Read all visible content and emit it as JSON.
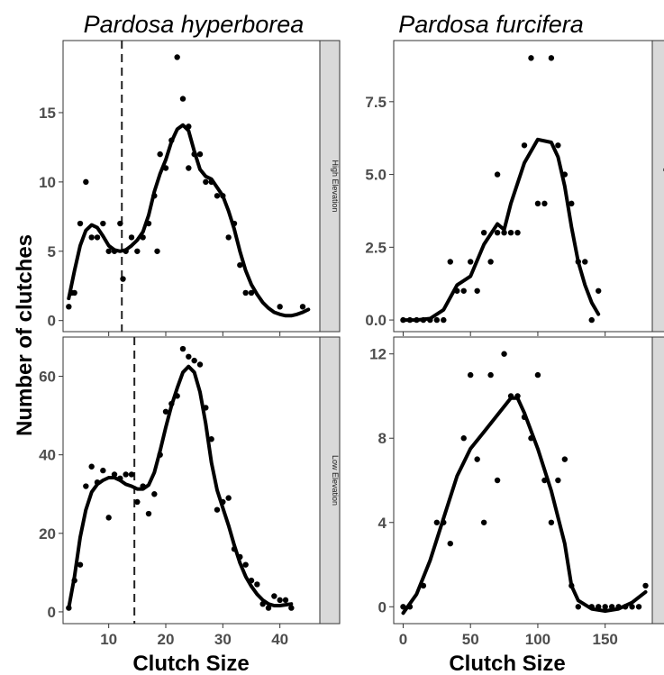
{
  "chart_data": {
    "type": "scatter",
    "xlabel": "Clutch Size",
    "ylabel": "Number of clutches",
    "columns": [
      {
        "title": "Pardosa hyperborea",
        "xlim": [
          2,
          47
        ],
        "xticks": [
          10,
          20,
          30,
          40
        ],
        "xtick_labels": [
          "10",
          "20",
          "30",
          "40"
        ]
      },
      {
        "title": "Pardosa furcifera",
        "xlim": [
          -7,
          185
        ],
        "xticks": [
          0,
          50,
          100,
          150
        ],
        "xtick_labels": [
          "0",
          "50",
          "100",
          "150"
        ]
      }
    ],
    "rows": [
      {
        "strip": "High Elevation"
      },
      {
        "strip": "Low Elevation"
      }
    ],
    "panels": [
      {
        "col": 0,
        "row": 0,
        "ylim": [
          -0.8,
          20.2
        ],
        "yticks": [
          0,
          5,
          10,
          15
        ],
        "ytick_labels": [
          "0",
          "5",
          "10",
          "15"
        ],
        "vline": 12.3,
        "points": [
          [
            3,
            1
          ],
          [
            3.5,
            2
          ],
          [
            4,
            2
          ],
          [
            5,
            7
          ],
          [
            6,
            10
          ],
          [
            7,
            6
          ],
          [
            8,
            6
          ],
          [
            9,
            7
          ],
          [
            10,
            5
          ],
          [
            11,
            5
          ],
          [
            12,
            7
          ],
          [
            12.5,
            3
          ],
          [
            13,
            5
          ],
          [
            14,
            6
          ],
          [
            15,
            5
          ],
          [
            16,
            6
          ],
          [
            17,
            7
          ],
          [
            18,
            9
          ],
          [
            18.5,
            5
          ],
          [
            19,
            12
          ],
          [
            20,
            11
          ],
          [
            21,
            13
          ],
          [
            22,
            19
          ],
          [
            23,
            16
          ],
          [
            24,
            14
          ],
          [
            24,
            11
          ],
          [
            25,
            12
          ],
          [
            26,
            12
          ],
          [
            27,
            10
          ],
          [
            28,
            10
          ],
          [
            29,
            9
          ],
          [
            30,
            9
          ],
          [
            31,
            6
          ],
          [
            32,
            7
          ],
          [
            33,
            4
          ],
          [
            34,
            2
          ],
          [
            35,
            2
          ],
          [
            40,
            1
          ],
          [
            44,
            1
          ]
        ],
        "smooth": [
          [
            3,
            1.6
          ],
          [
            4,
            3.6
          ],
          [
            5,
            5.4
          ],
          [
            6,
            6.5
          ],
          [
            7,
            6.9
          ],
          [
            8,
            6.7
          ],
          [
            9,
            6.1
          ],
          [
            10,
            5.4
          ],
          [
            11,
            5.1
          ],
          [
            12,
            5.0
          ],
          [
            13,
            5.1
          ],
          [
            14,
            5.4
          ],
          [
            15,
            5.8
          ],
          [
            16,
            6.4
          ],
          [
            17,
            7.6
          ],
          [
            18,
            9.3
          ],
          [
            19,
            10.6
          ],
          [
            20,
            11.6
          ],
          [
            21,
            12.9
          ],
          [
            22,
            13.8
          ],
          [
            23,
            14.1
          ],
          [
            24,
            13.7
          ],
          [
            25,
            12.2
          ],
          [
            26,
            10.9
          ],
          [
            27,
            10.4
          ],
          [
            28,
            10.2
          ],
          [
            29,
            9.6
          ],
          [
            30,
            9.0
          ],
          [
            31,
            7.9
          ],
          [
            32,
            6.6
          ],
          [
            33,
            5.0
          ],
          [
            34,
            3.6
          ],
          [
            35,
            2.6
          ],
          [
            36,
            1.9
          ],
          [
            37,
            1.3
          ],
          [
            38,
            0.9
          ],
          [
            39,
            0.6
          ],
          [
            40,
            0.45
          ],
          [
            41,
            0.35
          ],
          [
            42,
            0.35
          ],
          [
            43,
            0.45
          ],
          [
            44,
            0.6
          ],
          [
            45,
            0.8
          ]
        ]
      },
      {
        "col": 0,
        "row": 1,
        "ylim": [
          -3,
          70
        ],
        "yticks": [
          0,
          20,
          40,
          60
        ],
        "ytick_labels": [
          "0",
          "20",
          "40",
          "60"
        ],
        "vline": 14.5,
        "points": [
          [
            3,
            1
          ],
          [
            4,
            8
          ],
          [
            5,
            12
          ],
          [
            6,
            32
          ],
          [
            7,
            37
          ],
          [
            8,
            33
          ],
          [
            9,
            36
          ],
          [
            10,
            24
          ],
          [
            11,
            35
          ],
          [
            12,
            34
          ],
          [
            13,
            35
          ],
          [
            14,
            35
          ],
          [
            15,
            28
          ],
          [
            16,
            32
          ],
          [
            17,
            25
          ],
          [
            18,
            30
          ],
          [
            19,
            40
          ],
          [
            20,
            51
          ],
          [
            21,
            53
          ],
          [
            22,
            55
          ],
          [
            23,
            67
          ],
          [
            24,
            65
          ],
          [
            25,
            64
          ],
          [
            26,
            63
          ],
          [
            27,
            52
          ],
          [
            28,
            44
          ],
          [
            29,
            26
          ],
          [
            30,
            28
          ],
          [
            31,
            29
          ],
          [
            32,
            16
          ],
          [
            33,
            14
          ],
          [
            34,
            12
          ],
          [
            35,
            8
          ],
          [
            36,
            7
          ],
          [
            37,
            2
          ],
          [
            38,
            1
          ],
          [
            39,
            4
          ],
          [
            40,
            3
          ],
          [
            41,
            3
          ],
          [
            42,
            1
          ]
        ],
        "smooth": [
          [
            3,
            1
          ],
          [
            4,
            9
          ],
          [
            5,
            19
          ],
          [
            6,
            26
          ],
          [
            7,
            30.5
          ],
          [
            8,
            32.5
          ],
          [
            9,
            33.5
          ],
          [
            10,
            34.2
          ],
          [
            11,
            34.2
          ],
          [
            12,
            33.5
          ],
          [
            13,
            32.5
          ],
          [
            14,
            32
          ],
          [
            15,
            31.3
          ],
          [
            16,
            31.3
          ],
          [
            17,
            32.3
          ],
          [
            18,
            35.5
          ],
          [
            19,
            41
          ],
          [
            20,
            47
          ],
          [
            21,
            52.5
          ],
          [
            22,
            57
          ],
          [
            23,
            61
          ],
          [
            24,
            62.5
          ],
          [
            25,
            61
          ],
          [
            26,
            56
          ],
          [
            27,
            48
          ],
          [
            28,
            38
          ],
          [
            29,
            31
          ],
          [
            30,
            26.5
          ],
          [
            31,
            22
          ],
          [
            32,
            17
          ],
          [
            33,
            12.5
          ],
          [
            34,
            9
          ],
          [
            35,
            6.5
          ],
          [
            36,
            4.5
          ],
          [
            37,
            3
          ],
          [
            38,
            2
          ],
          [
            39,
            1.6
          ],
          [
            40,
            1.6
          ],
          [
            41,
            1.8
          ],
          [
            42,
            2
          ]
        ]
      },
      {
        "col": 1,
        "row": 0,
        "ylim": [
          -0.4,
          9.6
        ],
        "yticks": [
          0,
          2.5,
          5,
          7.5
        ],
        "ytick_labels": [
          "0.0",
          "2.5",
          "5.0",
          "7.5"
        ],
        "points": [
          [
            0,
            0
          ],
          [
            5,
            0
          ],
          [
            10,
            0
          ],
          [
            15,
            0
          ],
          [
            20,
            0
          ],
          [
            25,
            0
          ],
          [
            30,
            0
          ],
          [
            35,
            2
          ],
          [
            40,
            1
          ],
          [
            45,
            1
          ],
          [
            50,
            2
          ],
          [
            55,
            1
          ],
          [
            60,
            3
          ],
          [
            65,
            2
          ],
          [
            70,
            5
          ],
          [
            70,
            3
          ],
          [
            75,
            3
          ],
          [
            80,
            3
          ],
          [
            85,
            3
          ],
          [
            90,
            6
          ],
          [
            95,
            9
          ],
          [
            100,
            4
          ],
          [
            105,
            4
          ],
          [
            110,
            9
          ],
          [
            115,
            6
          ],
          [
            120,
            5
          ],
          [
            125,
            4
          ],
          [
            130,
            2
          ],
          [
            135,
            2
          ],
          [
            140,
            0
          ],
          [
            145,
            1
          ]
        ],
        "smooth": [
          [
            0,
            0
          ],
          [
            10,
            0
          ],
          [
            20,
            0.05
          ],
          [
            30,
            0.35
          ],
          [
            40,
            1.2
          ],
          [
            50,
            1.5
          ],
          [
            60,
            2.6
          ],
          [
            70,
            3.3
          ],
          [
            75,
            3.1
          ],
          [
            80,
            4.0
          ],
          [
            90,
            5.4
          ],
          [
            100,
            6.2
          ],
          [
            110,
            6.1
          ],
          [
            115,
            5.6
          ],
          [
            120,
            4.6
          ],
          [
            125,
            3.2
          ],
          [
            130,
            2.0
          ],
          [
            135,
            1.2
          ],
          [
            140,
            0.6
          ],
          [
            145,
            0.2
          ]
        ]
      },
      {
        "col": 1,
        "row": 1,
        "ylim": [
          -0.8,
          12.8
        ],
        "yticks": [
          0,
          4,
          8,
          12
        ],
        "ytick_labels": [
          "0",
          "4",
          "8",
          "12"
        ],
        "points": [
          [
            0,
            0
          ],
          [
            5,
            0
          ],
          [
            15,
            1
          ],
          [
            25,
            4
          ],
          [
            30,
            4
          ],
          [
            35,
            3
          ],
          [
            45,
            8
          ],
          [
            50,
            11
          ],
          [
            55,
            7
          ],
          [
            60,
            4
          ],
          [
            65,
            11
          ],
          [
            70,
            6
          ],
          [
            75,
            12
          ],
          [
            80,
            10
          ],
          [
            85,
            10
          ],
          [
            90,
            9
          ],
          [
            95,
            8
          ],
          [
            100,
            11
          ],
          [
            105,
            6
          ],
          [
            110,
            4
          ],
          [
            115,
            6
          ],
          [
            120,
            7
          ],
          [
            125,
            1
          ],
          [
            130,
            0
          ],
          [
            140,
            0
          ],
          [
            145,
            0
          ],
          [
            150,
            0
          ],
          [
            155,
            0
          ],
          [
            160,
            0
          ],
          [
            165,
            0
          ],
          [
            170,
            0
          ],
          [
            175,
            0
          ],
          [
            180,
            1
          ]
        ],
        "smooth": [
          [
            0,
            -0.3
          ],
          [
            10,
            0.6
          ],
          [
            20,
            2.2
          ],
          [
            30,
            4.2
          ],
          [
            40,
            6.2
          ],
          [
            50,
            7.5
          ],
          [
            60,
            8.3
          ],
          [
            70,
            9.1
          ],
          [
            80,
            9.9
          ],
          [
            85,
            9.9
          ],
          [
            90,
            9.2
          ],
          [
            100,
            7.5
          ],
          [
            110,
            5.5
          ],
          [
            120,
            3.0
          ],
          [
            125,
            1.0
          ],
          [
            130,
            0.3
          ],
          [
            140,
            -0.1
          ],
          [
            150,
            -0.2
          ],
          [
            160,
            -0.1
          ],
          [
            170,
            0.2
          ],
          [
            180,
            0.7
          ]
        ]
      }
    ]
  }
}
